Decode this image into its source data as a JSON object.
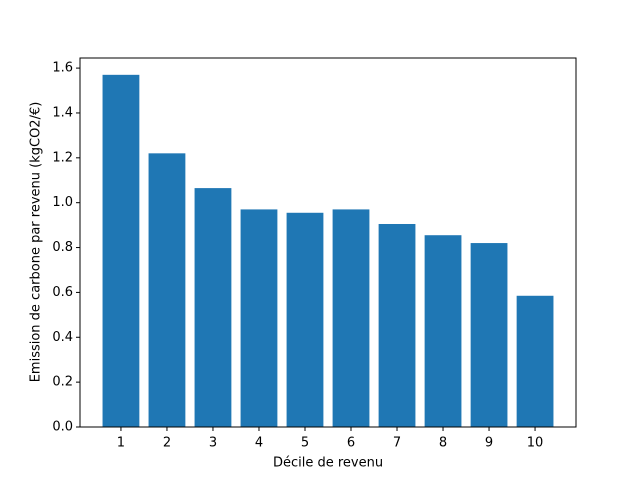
{
  "chart_data": {
    "type": "bar",
    "x_label": "Décile de revenu",
    "y_label": "Emission de carbone par revenu (kgCO2/€)",
    "x": [
      1,
      2,
      3,
      4,
      5,
      6,
      7,
      8,
      9,
      10
    ],
    "values": [
      1.57,
      1.22,
      1.065,
      0.97,
      0.955,
      0.97,
      0.905,
      0.855,
      0.82,
      0.585
    ],
    "color": "#1f77b4",
    "xlim": [
      0.11,
      10.89
    ],
    "xticks": [
      1,
      2,
      3,
      4,
      5,
      6,
      7,
      8,
      9,
      10
    ],
    "ylim": [
      0,
      1.645
    ],
    "yticks": [
      {
        "value": 0,
        "label": "0.0"
      },
      0.2,
      0.4,
      0.6,
      0.8,
      {
        "value": 1,
        "label": "1.0"
      },
      1.2,
      1.4,
      1.6
    ]
  }
}
